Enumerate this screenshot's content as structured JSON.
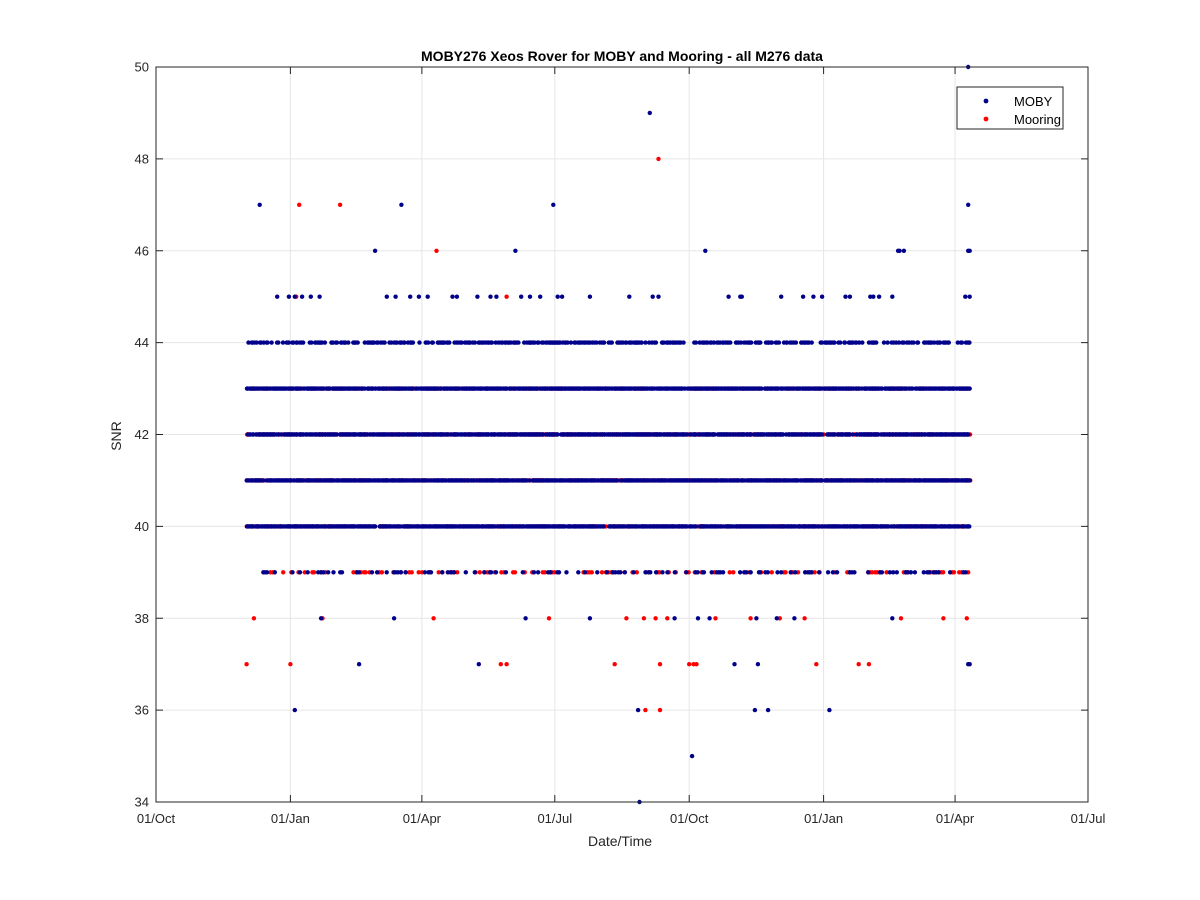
{
  "chart_data": {
    "type": "scatter",
    "title": "MOBY276 Xeos Rover for MOBY and Mooring - all M276 data",
    "xlabel": "Date/Time",
    "ylabel": "SNR",
    "ylim": [
      34,
      50
    ],
    "xlim_days": [
      0,
      638
    ],
    "x_ticks": [
      {
        "label": "01/Oct",
        "day": 0
      },
      {
        "label": "01/Jan",
        "day": 92
      },
      {
        "label": "01/Apr",
        "day": 182
      },
      {
        "label": "01/Jul",
        "day": 273
      },
      {
        "label": "01/Oct",
        "day": 365
      },
      {
        "label": "01/Jan",
        "day": 457
      },
      {
        "label": "01/Apr",
        "day": 547
      },
      {
        "label": "01/Jul",
        "day": 638
      }
    ],
    "y_ticks": [
      34,
      36,
      38,
      40,
      42,
      44,
      46,
      48,
      50
    ],
    "grid": true,
    "legend_position": "top-right",
    "x_range_days": [
      62,
      557
    ],
    "dense_levels": {
      "blue": [
        40,
        41,
        42,
        43,
        44
      ],
      "red": [
        40,
        41,
        42,
        43
      ]
    },
    "sparse_level_39": {
      "blue_start": 63,
      "red_start": 63,
      "end": 557
    },
    "series": [
      {
        "name": "MOBY",
        "color": "#00008b",
        "points": [
          [
            71,
            47
          ],
          [
            83,
            45
          ],
          [
            91,
            45
          ],
          [
            95,
            45
          ],
          [
            100,
            45
          ],
          [
            106,
            45
          ],
          [
            112,
            45
          ],
          [
            150,
            46
          ],
          [
            158,
            45
          ],
          [
            164,
            45
          ],
          [
            168,
            47
          ],
          [
            174,
            45
          ],
          [
            180,
            45
          ],
          [
            186,
            45
          ],
          [
            203,
            45
          ],
          [
            206,
            45
          ],
          [
            220,
            45
          ],
          [
            229,
            45
          ],
          [
            233,
            45
          ],
          [
            246,
            46
          ],
          [
            250,
            45
          ],
          [
            256,
            45
          ],
          [
            263,
            45
          ],
          [
            272,
            47
          ],
          [
            275,
            45
          ],
          [
            278,
            45
          ],
          [
            297,
            45
          ],
          [
            324,
            45
          ],
          [
            340,
            45
          ],
          [
            344,
            45
          ],
          [
            338,
            49
          ],
          [
            376,
            46
          ],
          [
            392,
            45
          ],
          [
            400,
            45
          ],
          [
            401,
            45
          ],
          [
            428,
            45
          ],
          [
            443,
            45
          ],
          [
            450,
            45
          ],
          [
            456,
            45
          ],
          [
            472,
            45
          ],
          [
            475,
            45
          ],
          [
            489,
            45
          ],
          [
            491,
            45
          ],
          [
            495,
            45
          ],
          [
            504,
            45
          ],
          [
            508,
            46
          ],
          [
            509,
            46
          ],
          [
            512,
            46
          ],
          [
            554,
            45
          ],
          [
            557,
            45
          ],
          [
            556,
            47
          ],
          [
            556,
            46
          ],
          [
            557,
            46
          ],
          [
            556,
            50
          ],
          [
            95,
            36
          ],
          [
            113,
            38
          ],
          [
            139,
            37
          ],
          [
            163,
            38
          ],
          [
            221,
            37
          ],
          [
            253,
            38
          ],
          [
            297,
            38
          ],
          [
            330,
            36
          ],
          [
            331,
            34
          ],
          [
            355,
            38
          ],
          [
            371,
            38
          ],
          [
            367,
            35
          ],
          [
            379,
            38
          ],
          [
            396,
            37
          ],
          [
            410,
            36
          ],
          [
            411,
            38
          ],
          [
            412,
            37
          ],
          [
            419,
            36
          ],
          [
            425,
            38
          ],
          [
            437,
            38
          ],
          [
            461,
            36
          ],
          [
            504,
            38
          ],
          [
            556,
            37
          ],
          [
            557,
            37
          ]
        ]
      },
      {
        "name": "Mooring",
        "color": "#ff0000",
        "points": [
          [
            62,
            37
          ],
          [
            67,
            38
          ],
          [
            92,
            37
          ],
          [
            98,
            47
          ],
          [
            126,
            47
          ],
          [
            96,
            45
          ],
          [
            114,
            38
          ],
          [
            190,
            38
          ],
          [
            192,
            46
          ],
          [
            236,
            37
          ],
          [
            240,
            37
          ],
          [
            240,
            45
          ],
          [
            269,
            38
          ],
          [
            314,
            37
          ],
          [
            322,
            38
          ],
          [
            334,
            38
          ],
          [
            335,
            36
          ],
          [
            342,
            38
          ],
          [
            344,
            48
          ],
          [
            345,
            37
          ],
          [
            345,
            36
          ],
          [
            350,
            38
          ],
          [
            365,
            37
          ],
          [
            368,
            37
          ],
          [
            370,
            37
          ],
          [
            383,
            38
          ],
          [
            407,
            38
          ],
          [
            427,
            38
          ],
          [
            444,
            38
          ],
          [
            452,
            37
          ],
          [
            481,
            37
          ],
          [
            488,
            37
          ],
          [
            510,
            38
          ],
          [
            539,
            38
          ],
          [
            555,
            38
          ]
        ]
      }
    ]
  }
}
